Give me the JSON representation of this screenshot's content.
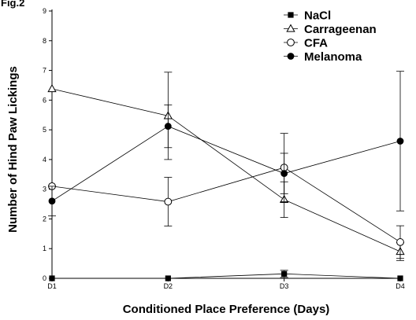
{
  "figure_label": "Fig.2",
  "chart_data": {
    "type": "line",
    "categories": [
      "D1",
      "D2",
      "D3",
      "D4"
    ],
    "xlabel": "Conditioned Place Preference (Days)",
    "ylabel": "Number of Hind Paw Lickings",
    "ylim": [
      0,
      9
    ],
    "yticks": [
      0,
      1,
      2,
      3,
      4,
      5,
      6,
      7,
      8,
      9
    ],
    "grid": false,
    "legend_position": "top-right",
    "series": [
      {
        "name": "NaCl",
        "marker": "filled-square",
        "values": [
          0,
          0,
          0.15,
          0
        ],
        "errors": [
          0,
          0,
          0.12,
          0
        ]
      },
      {
        "name": "Carrageenan",
        "marker": "open-triangle",
        "values": [
          6.38,
          5.47,
          2.65,
          0.9
        ],
        "errors": [
          0,
          1.47,
          0.6,
          0.3
        ]
      },
      {
        "name": "CFA",
        "marker": "open-circle",
        "values": [
          3.1,
          2.58,
          3.73,
          1.22
        ],
        "errors": [
          0,
          0.82,
          1.15,
          0.55
        ]
      },
      {
        "name": "Melanoma",
        "marker": "filled-circle",
        "values": [
          2.6,
          5.12,
          3.53,
          4.62
        ],
        "errors": [
          0.5,
          0.72,
          0.68,
          2.35
        ]
      }
    ]
  }
}
